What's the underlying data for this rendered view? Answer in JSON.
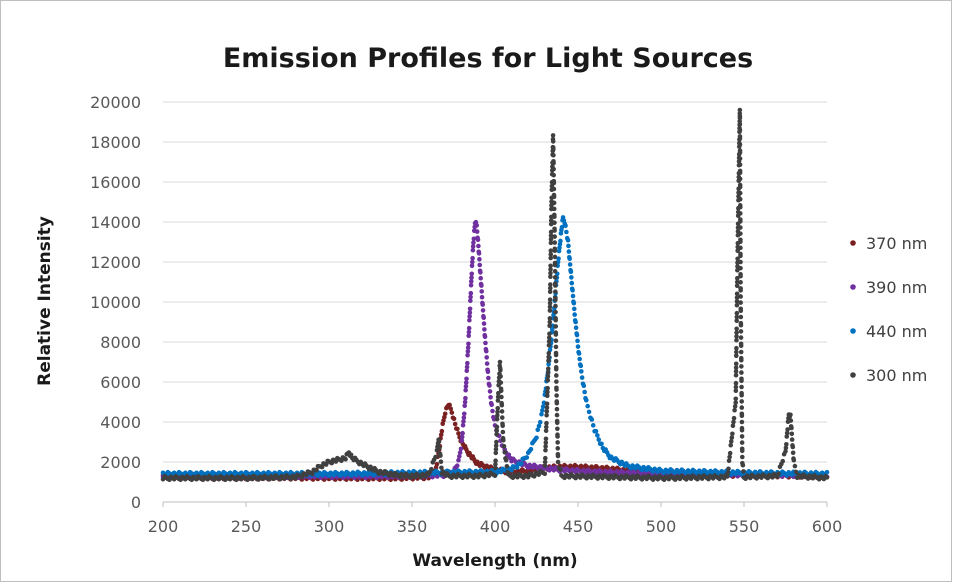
{
  "chart_data": {
    "type": "scatter",
    "title": "Emission Profiles for Light Sources",
    "xlabel": "Wavelength (nm)",
    "ylabel": "Relative Intensity",
    "xlim": [
      200,
      600
    ],
    "ylim": [
      0,
      20000
    ],
    "x_ticks": [
      200,
      250,
      300,
      350,
      400,
      450,
      500,
      550,
      600
    ],
    "y_ticks": [
      0,
      2000,
      4000,
      6000,
      8000,
      10000,
      12000,
      14000,
      16000,
      18000,
      20000
    ],
    "grid": "horizontal",
    "legend_position": "right",
    "series": [
      {
        "name": "370 nm",
        "color": "#7b2020",
        "points": [
          [
            200,
            1250
          ],
          [
            250,
            1230
          ],
          [
            300,
            1210
          ],
          [
            340,
            1200
          ],
          [
            360,
            1250
          ],
          [
            364,
            1500
          ],
          [
            366,
            2400
          ],
          [
            368,
            3600
          ],
          [
            370,
            4500
          ],
          [
            372,
            4900
          ],
          [
            374,
            4500
          ],
          [
            376,
            3900
          ],
          [
            378,
            3400
          ],
          [
            380,
            3000
          ],
          [
            382,
            2700
          ],
          [
            384,
            2450
          ],
          [
            386,
            2250
          ],
          [
            388,
            2050
          ],
          [
            390,
            1900
          ],
          [
            395,
            1750
          ],
          [
            400,
            1600
          ],
          [
            410,
            1500
          ],
          [
            420,
            1550
          ],
          [
            430,
            1700
          ],
          [
            440,
            1750
          ],
          [
            450,
            1750
          ],
          [
            460,
            1700
          ],
          [
            470,
            1650
          ],
          [
            480,
            1550
          ],
          [
            500,
            1400
          ],
          [
            550,
            1350
          ],
          [
            600,
            1300
          ]
        ]
      },
      {
        "name": "390 nm",
        "color": "#7030a0",
        "points": [
          [
            200,
            1300
          ],
          [
            300,
            1300
          ],
          [
            350,
            1300
          ],
          [
            370,
            1350
          ],
          [
            375,
            1500
          ],
          [
            378,
            2000
          ],
          [
            380,
            3000
          ],
          [
            382,
            5000
          ],
          [
            384,
            8000
          ],
          [
            386,
            11500
          ],
          [
            387,
            13000
          ],
          [
            388,
            14000
          ],
          [
            389,
            13800
          ],
          [
            390,
            12800
          ],
          [
            392,
            10500
          ],
          [
            394,
            8200
          ],
          [
            396,
            6200
          ],
          [
            398,
            4800
          ],
          [
            400,
            3800
          ],
          [
            405,
            2700
          ],
          [
            410,
            2100
          ],
          [
            420,
            1800
          ],
          [
            430,
            1700
          ],
          [
            440,
            1600
          ],
          [
            460,
            1500
          ],
          [
            500,
            1400
          ],
          [
            600,
            1350
          ]
        ]
      },
      {
        "name": "440 nm",
        "color": "#0070c0",
        "points": [
          [
            200,
            1400
          ],
          [
            300,
            1400
          ],
          [
            350,
            1450
          ],
          [
            400,
            1500
          ],
          [
            410,
            1650
          ],
          [
            415,
            1900
          ],
          [
            420,
            2400
          ],
          [
            425,
            3300
          ],
          [
            428,
            4300
          ],
          [
            430,
            5300
          ],
          [
            432,
            6600
          ],
          [
            434,
            8200
          ],
          [
            436,
            10000
          ],
          [
            438,
            12000
          ],
          [
            440,
            13600
          ],
          [
            441,
            14200
          ],
          [
            442,
            14000
          ],
          [
            444,
            13000
          ],
          [
            446,
            11200
          ],
          [
            448,
            9400
          ],
          [
            450,
            7800
          ],
          [
            452,
            6500
          ],
          [
            455,
            5000
          ],
          [
            460,
            3600
          ],
          [
            465,
            2700
          ],
          [
            470,
            2200
          ],
          [
            480,
            1800
          ],
          [
            500,
            1550
          ],
          [
            550,
            1450
          ],
          [
            600,
            1400
          ]
        ]
      },
      {
        "name": "300 nm",
        "color": "#404040",
        "points": [
          [
            200,
            1200
          ],
          [
            250,
            1200
          ],
          [
            280,
            1250
          ],
          [
            290,
            1500
          ],
          [
            295,
            1800
          ],
          [
            300,
            2000
          ],
          [
            305,
            2100
          ],
          [
            310,
            2200
          ],
          [
            312,
            2500
          ],
          [
            314,
            2200
          ],
          [
            320,
            1900
          ],
          [
            325,
            1700
          ],
          [
            330,
            1500
          ],
          [
            340,
            1350
          ],
          [
            350,
            1300
          ],
          [
            360,
            1350
          ],
          [
            365,
            2500
          ],
          [
            366,
            3200
          ],
          [
            368,
            1500
          ],
          [
            372,
            1300
          ],
          [
            390,
            1300
          ],
          [
            400,
            1400
          ],
          [
            402,
            5500
          ],
          [
            403,
            7000
          ],
          [
            405,
            3000
          ],
          [
            408,
            1300
          ],
          [
            420,
            1300
          ],
          [
            430,
            1500
          ],
          [
            433,
            9000
          ],
          [
            434,
            14800
          ],
          [
            435,
            18300
          ],
          [
            436,
            13000
          ],
          [
            437,
            5800
          ],
          [
            438,
            2000
          ],
          [
            440,
            1300
          ],
          [
            500,
            1200
          ],
          [
            540,
            1250
          ],
          [
            545,
            5000
          ],
          [
            546,
            11500
          ],
          [
            547,
            17000
          ],
          [
            547.5,
            19600
          ],
          [
            548,
            10000
          ],
          [
            549,
            2000
          ],
          [
            550,
            1250
          ],
          [
            570,
            1300
          ],
          [
            575,
            2500
          ],
          [
            577,
            4400
          ],
          [
            578,
            4300
          ],
          [
            580,
            2000
          ],
          [
            582,
            1300
          ],
          [
            600,
            1200
          ]
        ]
      }
    ]
  }
}
